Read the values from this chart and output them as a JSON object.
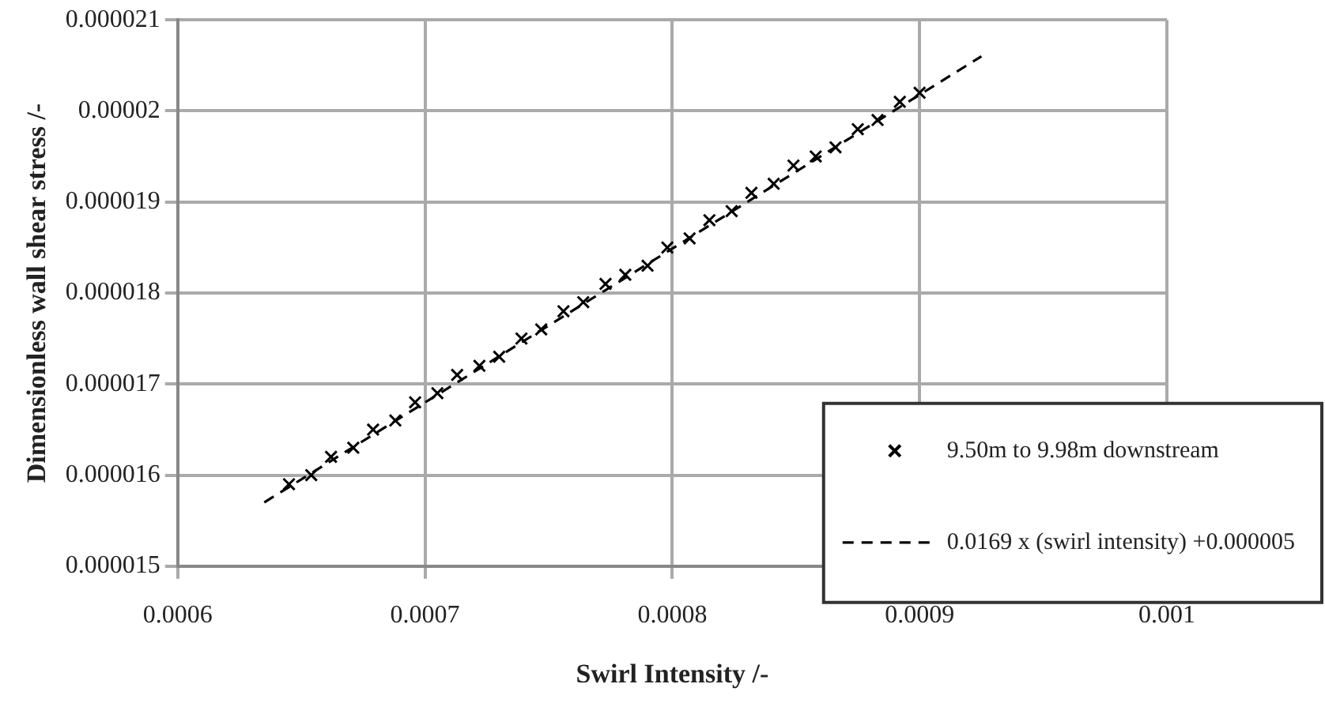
{
  "chart_data": {
    "type": "scatter",
    "xlabel": "Swirl Intensity /-",
    "ylabel": "Dimensionless wall shear stress /-",
    "xlim": [
      0.0006,
      0.001
    ],
    "xticks": [
      0.0006,
      0.0007,
      0.0008,
      0.0009,
      0.001
    ],
    "ylim": [
      1.5e-05,
      2.1e-05
    ],
    "yticks": [
      {
        "value": 1.5e-05,
        "label": "0.000015"
      },
      {
        "value": 1.6e-05,
        "label": "0.000016"
      },
      {
        "value": 1.7e-05,
        "label": "0.000017"
      },
      {
        "value": 1.8e-05,
        "label": "0.000018"
      },
      {
        "value": 1.9e-05,
        "label": "0.000019"
      },
      {
        "value": 2e-05,
        "label": "0.00002"
      },
      {
        "value": 2.1e-05,
        "label": "0.000021"
      }
    ],
    "grid": true,
    "legend": "bottom right",
    "series": [
      {
        "name": "9.50m to 9.98m downstream",
        "type": "scatter",
        "marker": "cross",
        "color": "#000000",
        "x": [
          0.000645,
          0.000654,
          0.000662,
          0.000671,
          0.000679,
          0.000688,
          0.000696,
          0.000705,
          0.000713,
          0.000722,
          0.00073,
          0.000739,
          0.000747,
          0.000756,
          0.000764,
          0.000773,
          0.000781,
          0.00079,
          0.000798,
          0.000807,
          0.000815,
          0.000824,
          0.000832,
          0.000841,
          0.000849,
          0.000858,
          0.000866,
          0.000875,
          0.000883,
          0.000892,
          0.0009
        ],
        "values": [
          1.59e-05,
          1.6e-05,
          1.62e-05,
          1.63e-05,
          1.65e-05,
          1.66e-05,
          1.68e-05,
          1.69e-05,
          1.71e-05,
          1.72e-05,
          1.73e-05,
          1.75e-05,
          1.76e-05,
          1.78e-05,
          1.79e-05,
          1.81e-05,
          1.82e-05,
          1.83e-05,
          1.85e-05,
          1.86e-05,
          1.88e-05,
          1.89e-05,
          1.91e-05,
          1.92e-05,
          1.94e-05,
          1.95e-05,
          1.96e-05,
          1.98e-05,
          1.99e-05,
          2.01e-05,
          2.02e-05
        ]
      },
      {
        "name": "0.0169 x (swirl intensity) +0.000005",
        "type": "line",
        "line_style": "dashed",
        "marker": "none",
        "color": "#000000",
        "x": [
          0.000635,
          0.000925
        ],
        "values": [
          1.57e-05,
          2.06e-05
        ]
      }
    ]
  }
}
